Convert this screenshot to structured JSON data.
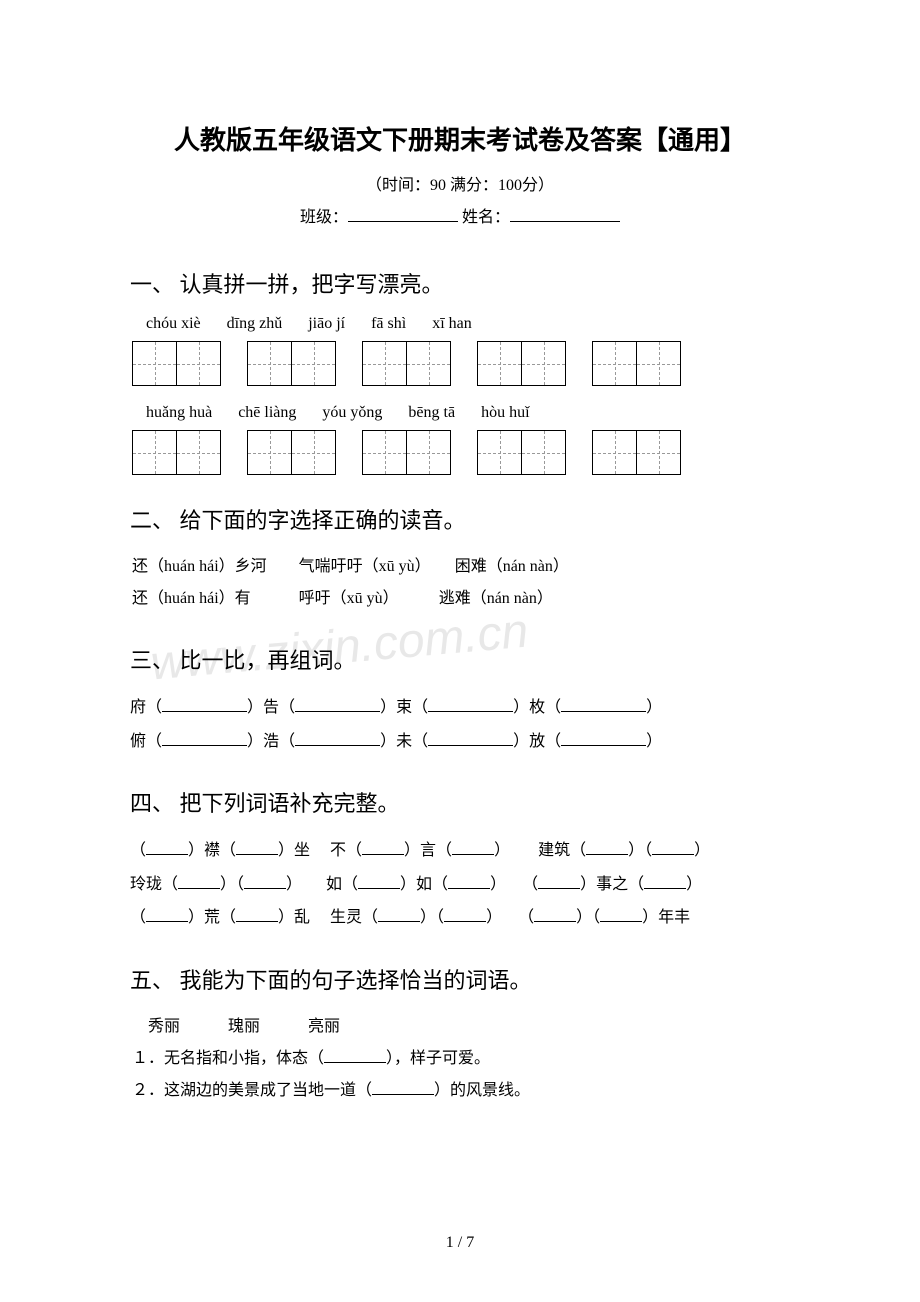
{
  "title": "人教版五年级语文下册期末考试卷及答案【通用】",
  "subtitle": "（时间：90   满分：100分）",
  "form_labels": {
    "class": "班级：",
    "name": " 姓名："
  },
  "sections": {
    "s1": {
      "title": "一、 认真拼一拼，把字写漂亮。",
      "row1": [
        "chóu xiè",
        "dīng zhǔ",
        "jiāo jí",
        "fā shì",
        "xī han"
      ],
      "row2": [
        "huǎng huà",
        "chē liàng",
        "yóu yǒng",
        "bēng tā",
        "hòu huǐ"
      ]
    },
    "s2": {
      "title": "二、 给下面的字选择正确的读音。",
      "line1_a": "还（huán hái）乡河",
      "line1_b": "气喘吁吁（xū yù）",
      "line1_c": "困难（nán nàn）",
      "line2_a": "还（huán hái）有",
      "line2_b": "呼吁（xū yù）",
      "line2_c": "逃难（nán nàn）"
    },
    "s3": {
      "title": "三、 比一比，再组词。",
      "pairs": [
        [
          "府",
          "告",
          "束",
          "枚"
        ],
        [
          "俯",
          "浩",
          "未",
          "放"
        ]
      ]
    },
    "s4": {
      "title": "四、 把下列词语补充完整。",
      "line1": {
        "a": "）襟（",
        "b": "）坐　 不（",
        "c": "）言（",
        "d": "）　　 建筑（",
        "e": "）（",
        "f": "）"
      },
      "line2": {
        "a": "玲珑（",
        "b": "）（",
        "c": "）　　如（",
        "d": "）如（",
        "e": "）　　（",
        "f": "）事之（",
        "g": "）"
      },
      "line3": {
        "a": "（",
        "b": "）荒（",
        "c": "）乱　 生灵（",
        "d": "）（",
        "e": "）　　（",
        "f": "）（",
        "g": "）年丰"
      }
    },
    "s5": {
      "title": "五、 我能为下面的句子选择恰当的词语。",
      "words": "　秀丽　　　瑰丽　　　亮丽",
      "q1_a": "１．无名指和小指，体态（",
      "q1_b": "），样子可爱。",
      "q2_a": "２．这湖边的美景成了当地一道（",
      "q2_b": "）的风景线。"
    }
  },
  "watermark": "www.zixin.com.cn",
  "page_num": "1 / 7"
}
